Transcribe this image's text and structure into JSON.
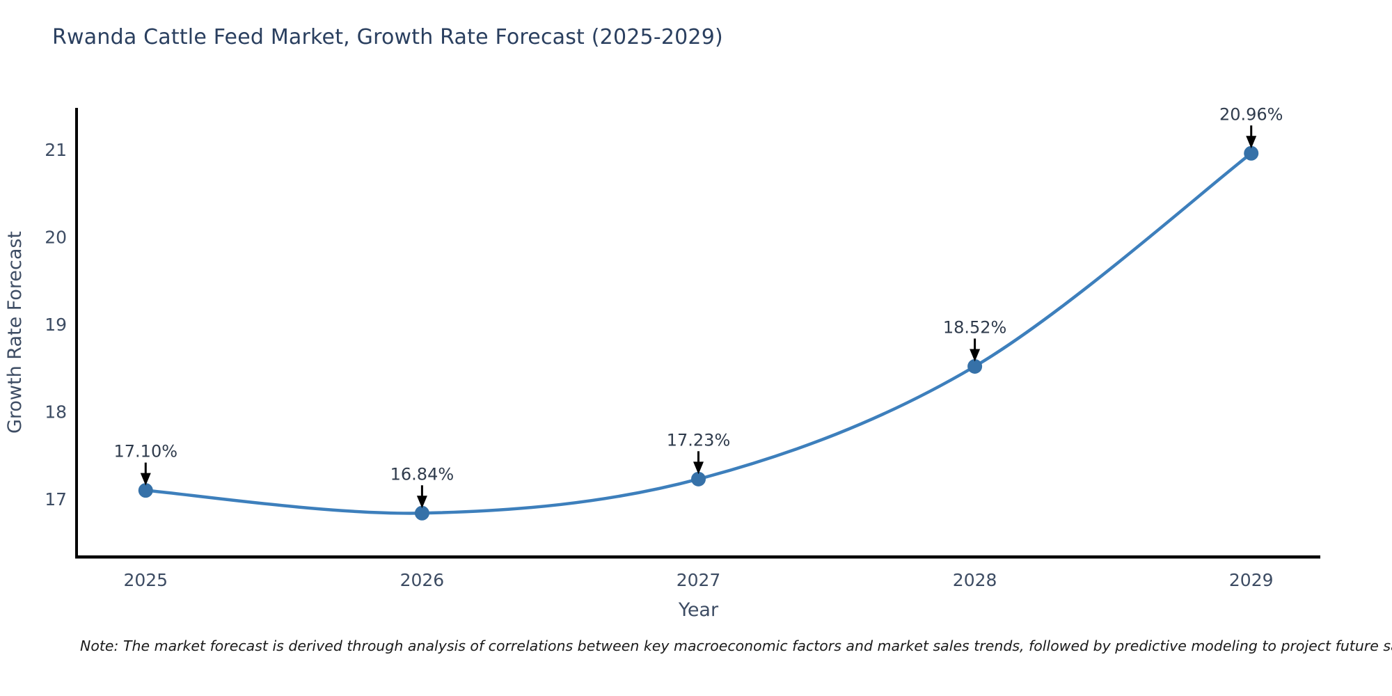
{
  "title": "Rwanda Cattle Feed Market, Growth Rate Forecast (2025-2029)",
  "note": "Note: The market forecast is derived through analysis of correlations between key macroeconomic factors and market sales trends, followed by predictive modeling to project future sales",
  "chart_data": {
    "type": "line",
    "title": "Rwanda Cattle Feed Market, Growth Rate Forecast (2025-2029)",
    "categories": [
      "2025",
      "2026",
      "2027",
      "2028",
      "2029"
    ],
    "x": [
      2025,
      2026,
      2027,
      2028,
      2029
    ],
    "values": [
      17.1,
      16.84,
      17.23,
      18.52,
      20.96
    ],
    "point_labels": [
      "17.10%",
      "16.84%",
      "17.23%",
      "18.52%",
      "20.96%"
    ],
    "xlabel": "Year",
    "ylabel": "Growth Rate Forecast",
    "xlim": [
      2024.75,
      2029.25
    ],
    "ylim": [
      16.34,
      21.48
    ],
    "yticks": [
      17,
      18,
      19,
      20,
      21
    ],
    "grid": false,
    "legend_position": "none",
    "smooth": true,
    "annotations_have_arrows": true
  },
  "colors": {
    "background": "#ffffff",
    "title_text": "#2a3f5f",
    "axis_text": "#3d4c63",
    "annotation_text": "#2f3b4c",
    "note_text": "#1a1a1a",
    "spine": "#000000",
    "line": "#3d7fbc",
    "marker": "#3671a8",
    "arrow": "#000000"
  }
}
